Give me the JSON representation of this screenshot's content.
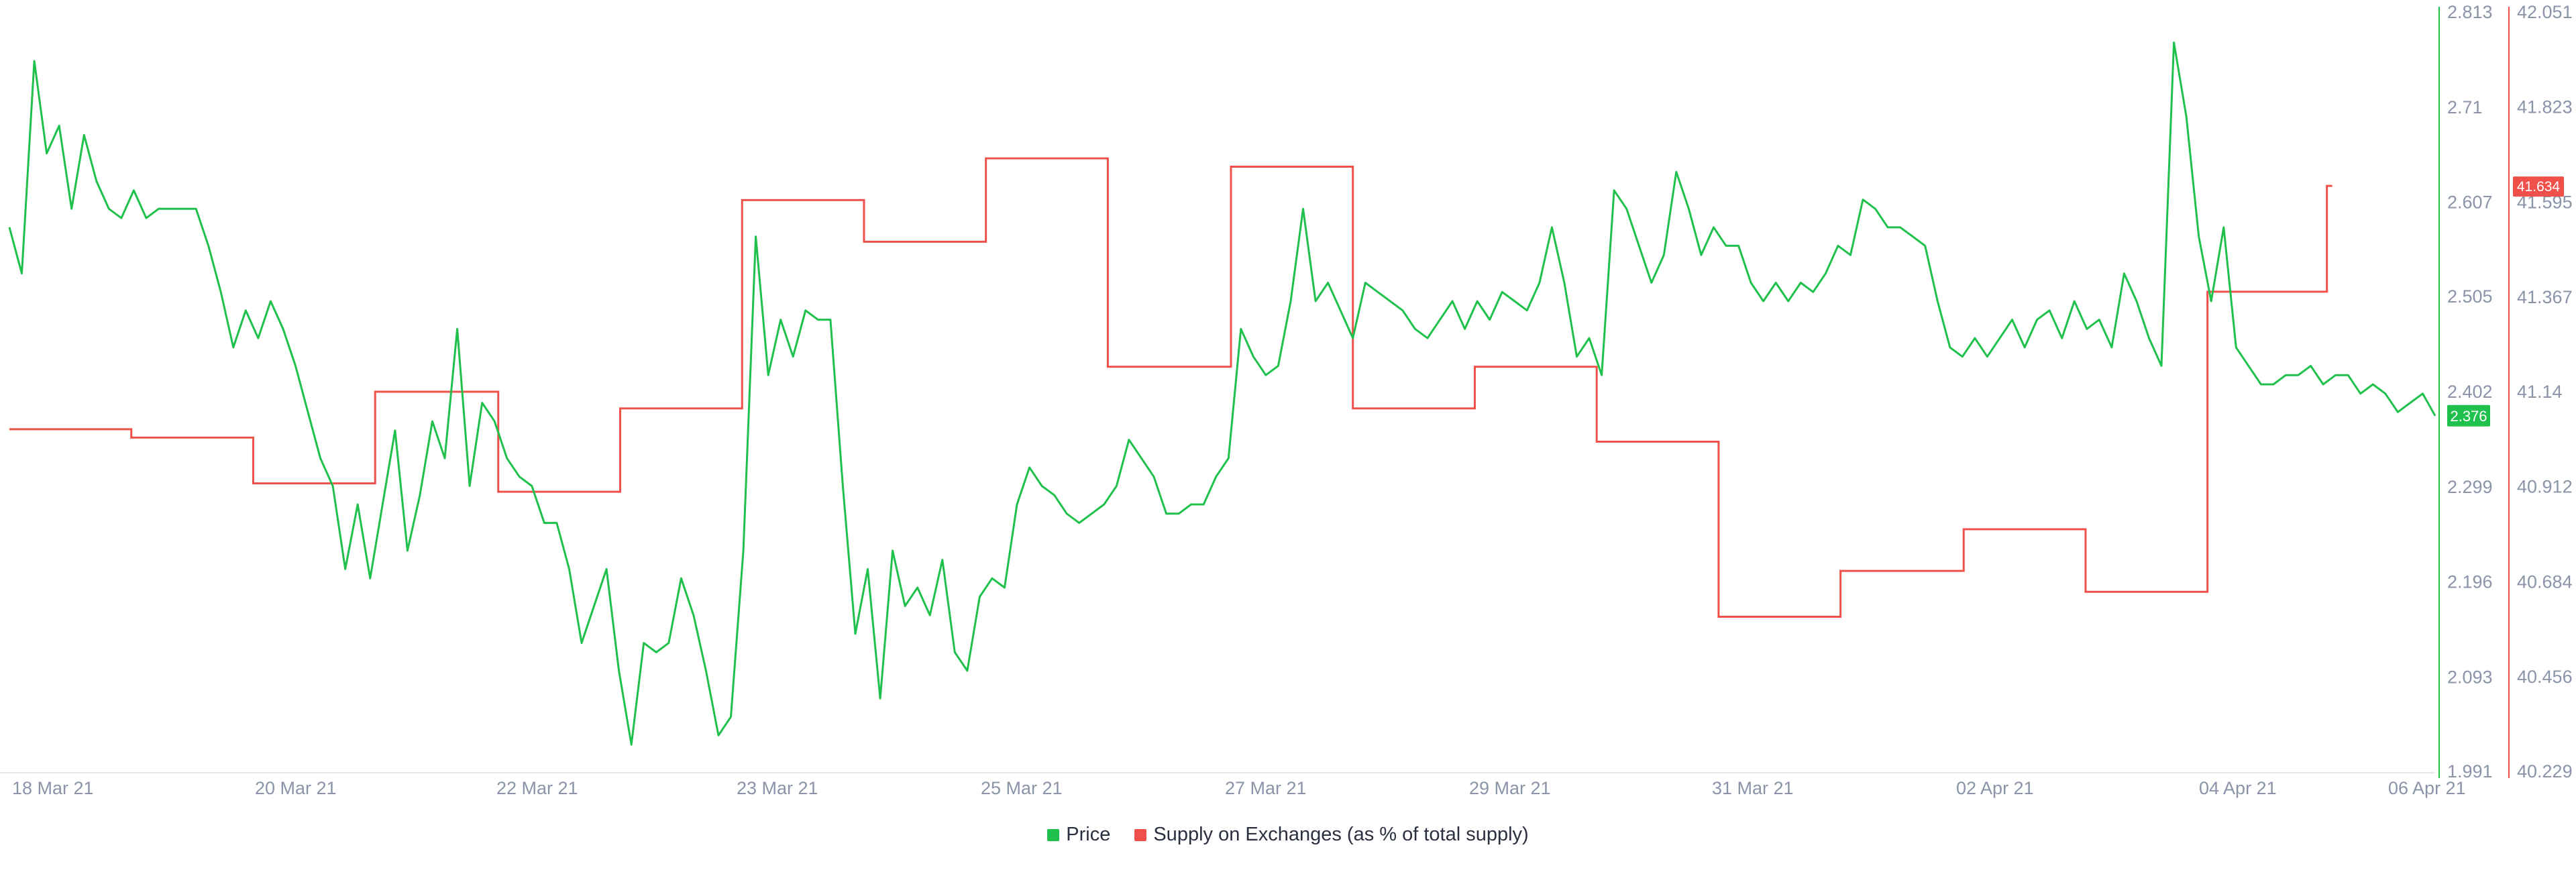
{
  "chart_data": {
    "type": "line",
    "x_ticks": [
      "18 Mar 21",
      "20 Mar 21",
      "22 Mar 21",
      "23 Mar 21",
      "25 Mar 21",
      "27 Mar 21",
      "29 Mar 21",
      "31 Mar 21",
      "02 Apr 21",
      "04 Apr 21",
      "06 Apr 21"
    ],
    "y_left": {
      "ticks": [
        "2.813",
        "2.71",
        "2.607",
        "2.505",
        "2.402",
        "2.299",
        "2.196",
        "2.093",
        "1.991"
      ],
      "ylim": [
        1.991,
        2.813
      ]
    },
    "y_right": {
      "ticks": [
        "42.051",
        "41.823",
        "41.595",
        "41.367",
        "41.14",
        "40.912",
        "40.684",
        "40.456",
        "40.229"
      ],
      "ylim": [
        40.229,
        42.051
      ]
    },
    "price_last_badge": "2.376",
    "supply_last_badge": "41.634",
    "series": [
      {
        "name": "Price",
        "axis": "left",
        "color": "#1fc14c",
        "x": [
          0,
          1,
          2,
          3,
          4,
          5,
          6,
          7,
          8,
          9,
          10,
          11,
          12,
          13,
          14,
          15,
          16,
          17,
          18,
          19,
          20,
          21,
          22,
          23,
          24,
          25,
          26,
          27,
          28,
          29,
          30,
          31,
          32,
          33,
          34,
          35,
          36,
          37,
          38,
          39,
          40,
          41,
          42,
          43,
          44,
          45,
          46,
          47,
          48,
          49,
          50,
          51,
          52,
          53,
          54,
          55,
          56,
          57,
          58,
          59,
          60,
          61,
          62,
          63,
          64,
          65,
          66,
          67,
          68,
          69,
          70,
          71,
          72,
          73,
          74,
          75,
          76,
          77,
          78,
          79,
          80,
          81,
          82,
          83,
          84,
          85,
          86,
          87,
          88,
          89,
          90,
          91,
          92,
          93,
          94,
          95,
          96,
          97,
          98,
          99,
          100,
          101,
          102,
          103,
          104,
          105,
          106,
          107,
          108,
          109,
          110,
          111,
          112,
          113,
          114,
          115,
          116,
          117,
          118,
          119,
          120,
          121,
          122,
          123,
          124,
          125,
          126,
          127,
          128,
          129,
          130,
          131,
          132,
          133,
          134,
          135,
          136,
          137,
          138,
          139,
          140,
          141,
          142,
          143,
          144,
          145,
          146,
          147,
          148,
          149,
          150,
          151,
          152,
          153,
          154,
          155,
          156,
          157,
          158,
          159,
          160,
          161,
          162,
          163,
          164,
          165,
          166,
          167,
          168,
          169,
          170,
          171,
          172,
          173,
          174,
          175,
          176,
          177,
          178,
          179,
          180,
          181,
          182,
          183,
          184,
          185,
          186,
          187,
          188,
          189,
          190,
          191,
          192,
          193,
          194,
          195
        ],
        "values": [
          2.58,
          2.53,
          2.76,
          2.66,
          2.69,
          2.6,
          2.68,
          2.63,
          2.6,
          2.59,
          2.62,
          2.59,
          2.6,
          2.6,
          2.6,
          2.6,
          2.56,
          2.51,
          2.45,
          2.49,
          2.46,
          2.5,
          2.47,
          2.43,
          2.38,
          2.33,
          2.3,
          2.21,
          2.28,
          2.2,
          2.28,
          2.36,
          2.23,
          2.29,
          2.37,
          2.33,
          2.47,
          2.3,
          2.39,
          2.37,
          2.33,
          2.31,
          2.3,
          2.26,
          2.26,
          2.21,
          2.13,
          2.17,
          2.21,
          2.1,
          2.02,
          2.13,
          2.12,
          2.13,
          2.2,
          2.16,
          2.1,
          2.03,
          2.05,
          2.23,
          2.57,
          2.42,
          2.48,
          2.44,
          2.49,
          2.48,
          2.48,
          2.3,
          2.14,
          2.21,
          2.07,
          2.23,
          2.17,
          2.19,
          2.16,
          2.22,
          2.12,
          2.1,
          2.18,
          2.2,
          2.19,
          2.28,
          2.32,
          2.3,
          2.29,
          2.27,
          2.26,
          2.27,
          2.28,
          2.3,
          2.35,
          2.33,
          2.31,
          2.27,
          2.27,
          2.28,
          2.28,
          2.31,
          2.33,
          2.47,
          2.44,
          2.42,
          2.43,
          2.5,
          2.6,
          2.5,
          2.52,
          2.49,
          2.46,
          2.52,
          2.51,
          2.5,
          2.49,
          2.47,
          2.46,
          2.48,
          2.5,
          2.47,
          2.5,
          2.48,
          2.51,
          2.5,
          2.49,
          2.52,
          2.58,
          2.52,
          2.44,
          2.46,
          2.42,
          2.62,
          2.6,
          2.56,
          2.52,
          2.55,
          2.64,
          2.6,
          2.55,
          2.58,
          2.56,
          2.56,
          2.52,
          2.5,
          2.52,
          2.5,
          2.52,
          2.51,
          2.53,
          2.56,
          2.55,
          2.61,
          2.6,
          2.58,
          2.58,
          2.57,
          2.56,
          2.5,
          2.45,
          2.44,
          2.46,
          2.44,
          2.46,
          2.48,
          2.45,
          2.48,
          2.49,
          2.46,
          2.5,
          2.47,
          2.48,
          2.45,
          2.53,
          2.5,
          2.46,
          2.43,
          2.78,
          2.7,
          2.57,
          2.5,
          2.58,
          2.45,
          2.43,
          2.41,
          2.41,
          2.42,
          2.42,
          2.43,
          2.41,
          2.42,
          2.42,
          2.4,
          2.41,
          2.4,
          2.38,
          2.39,
          2.4,
          2.376
        ]
      },
      {
        "name": "Supply on Exchanges (as % of total supply)",
        "axis": "right",
        "color": "#f0504a",
        "step_x": [
          0,
          9.8,
          19.6,
          29.4,
          39.3,
          49.1,
          58.9,
          68.7,
          78.5,
          88.3,
          98.2,
          108.0,
          117.8,
          127.6,
          137.4,
          147.2,
          157.1,
          166.9,
          176.7,
          186.3
        ],
        "step_values": [
          41.05,
          41.03,
          40.92,
          41.14,
          40.9,
          41.1,
          41.6,
          41.5,
          41.7,
          41.2,
          41.68,
          41.1,
          41.2,
          41.02,
          40.6,
          40.71,
          40.81,
          40.66,
          41.38,
          41.634
        ]
      }
    ]
  },
  "legend": {
    "price_label": "Price",
    "supply_label": "Supply on Exchanges (as % of total supply)"
  },
  "colors": {
    "price": "#1fc14c",
    "supply": "#f0504a",
    "tick_text": "#8a93a8",
    "axis_line": "#e6e8ef"
  }
}
